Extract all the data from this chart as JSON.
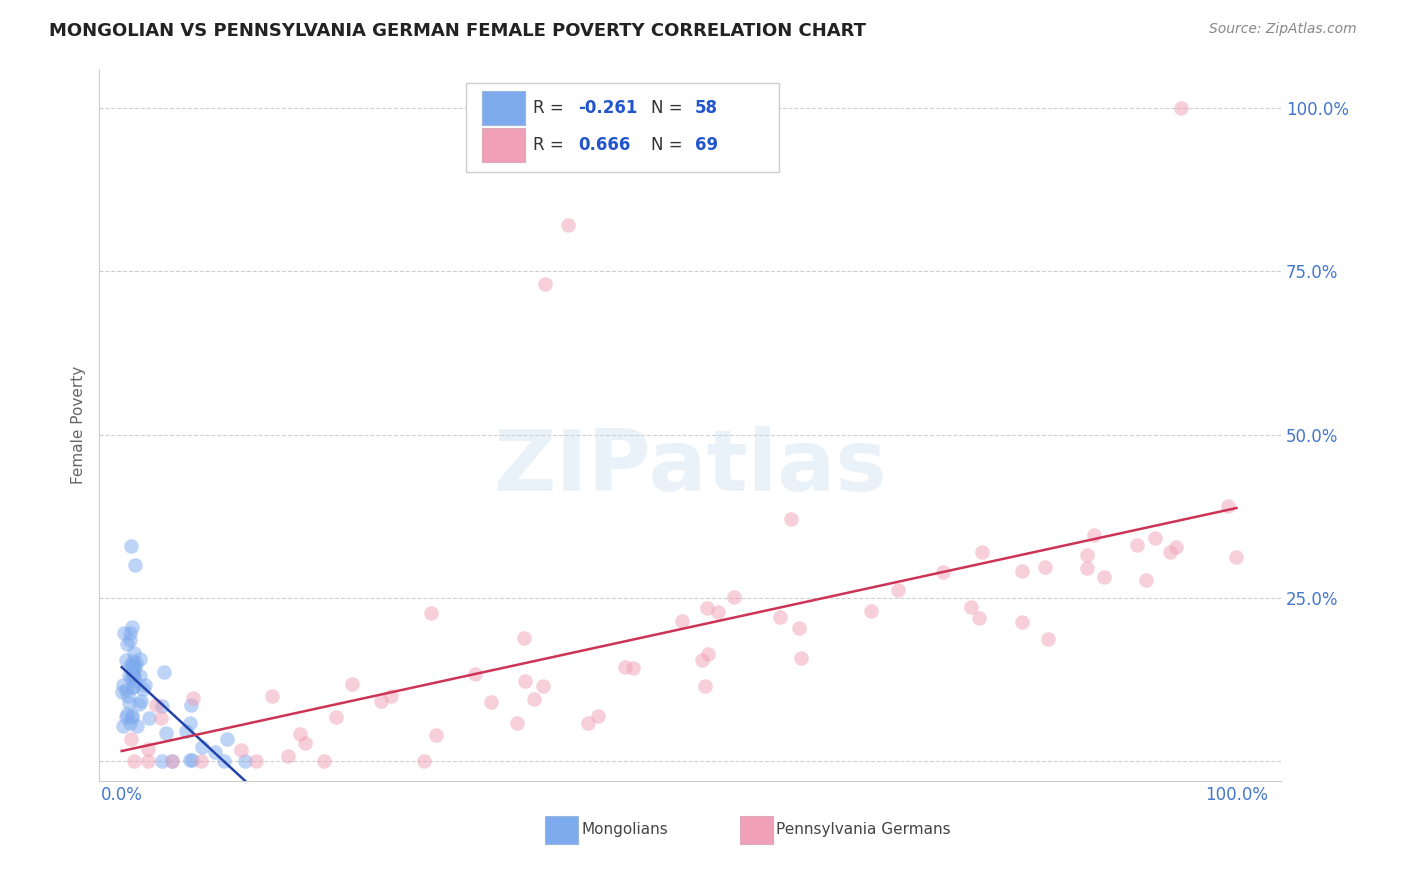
{
  "title": "MONGOLIAN VS PENNSYLVANIA GERMAN FEMALE POVERTY CORRELATION CHART",
  "source": "Source: ZipAtlas.com",
  "ylabel": "Female Poverty",
  "watermark": "ZIPatlas",
  "mongolian_R": -0.261,
  "mongolian_N": 58,
  "pennger_R": 0.666,
  "pennger_N": 69,
  "mongolian_color": "#7eaaee",
  "pennger_color": "#f0a0b8",
  "mongolian_line_color": "#2244aa",
  "pennger_line_color": "#cc3355",
  "background_color": "#ffffff",
  "grid_color": "#bbbbbb",
  "title_color": "#222222",
  "tick_color": "#4477cc",
  "legend_text_color": "#333333",
  "legend_val_color": "#2255cc",
  "source_color": "#888888"
}
